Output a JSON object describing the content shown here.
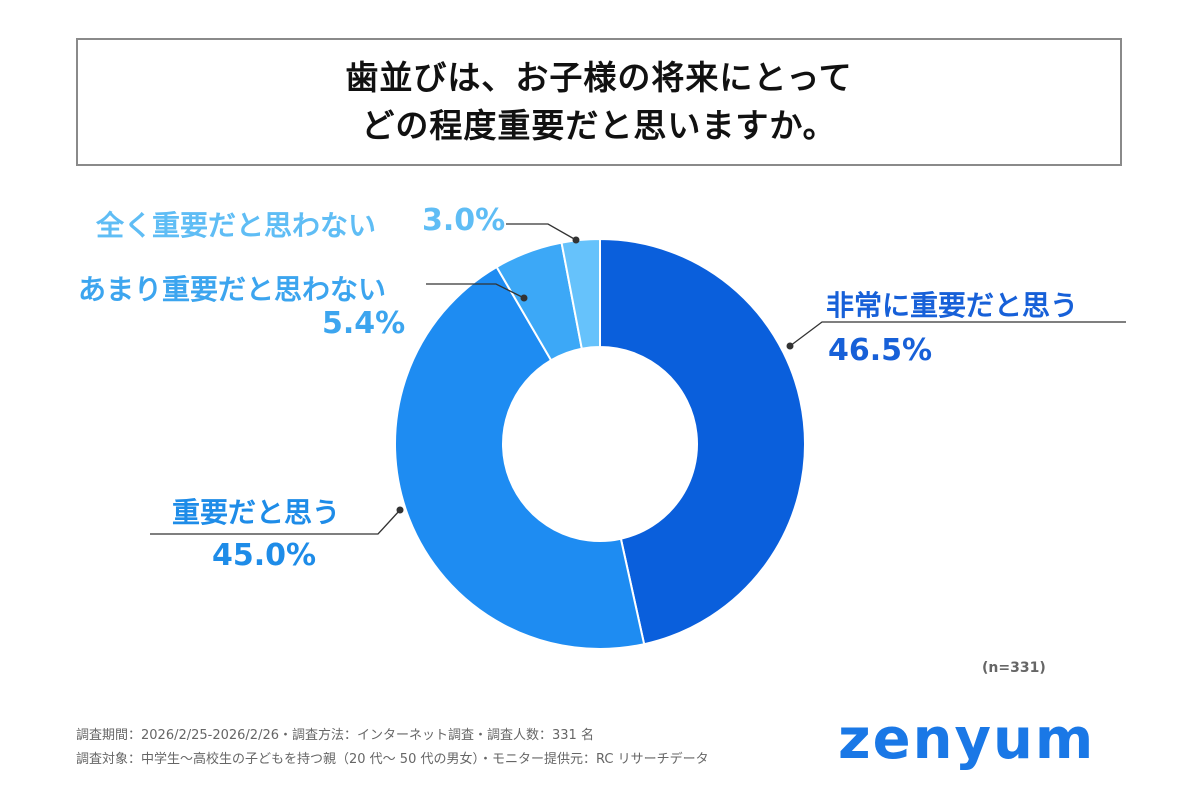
{
  "header": {
    "title_line1": "歯並びは、お子様の将来にとって",
    "title_line2": "どの程度重要だと思いますか。"
  },
  "chart_data": {
    "type": "pie",
    "title": "歯並びは、お子様の将来にとってどの程度重要だと思いますか。",
    "donut": true,
    "unit": "%",
    "slices": [
      {
        "label": "非常に重要だと思う",
        "value": 46.5,
        "value_label": "46.5%",
        "color": "#0a5fdc",
        "label_color": "#1760d8"
      },
      {
        "label": "重要だと思う",
        "value": 45.0,
        "value_label": "45.0%",
        "color": "#1e8cf2",
        "label_color": "#1e8ce8"
      },
      {
        "label": "あまり重要だと思わない",
        "value": 5.4,
        "value_label": "5.4%",
        "color": "#3ca8f7",
        "label_color": "#3ca5ef"
      },
      {
        "label": "全く重要だと思わない",
        "value": 3.0,
        "value_label": "3.0%",
        "color": "#66c2fb",
        "label_color": "#5fbdf5"
      }
    ],
    "sample_note": "(n=331)"
  },
  "footer": {
    "line1": "調査期間：2026/2/25-2026/2/26・調査方法：インターネット調査・調査人数：331 名",
    "line2": "調査対象：中学生〜高校生の子どもを持つ親（20 代〜 50 代の男女）・モニター提供元：RC リサーチデータ"
  },
  "brand": {
    "name": "zenyum",
    "color": "#1a78e6"
  },
  "colors": {
    "leader": "#333333",
    "background": "#ffffff"
  }
}
